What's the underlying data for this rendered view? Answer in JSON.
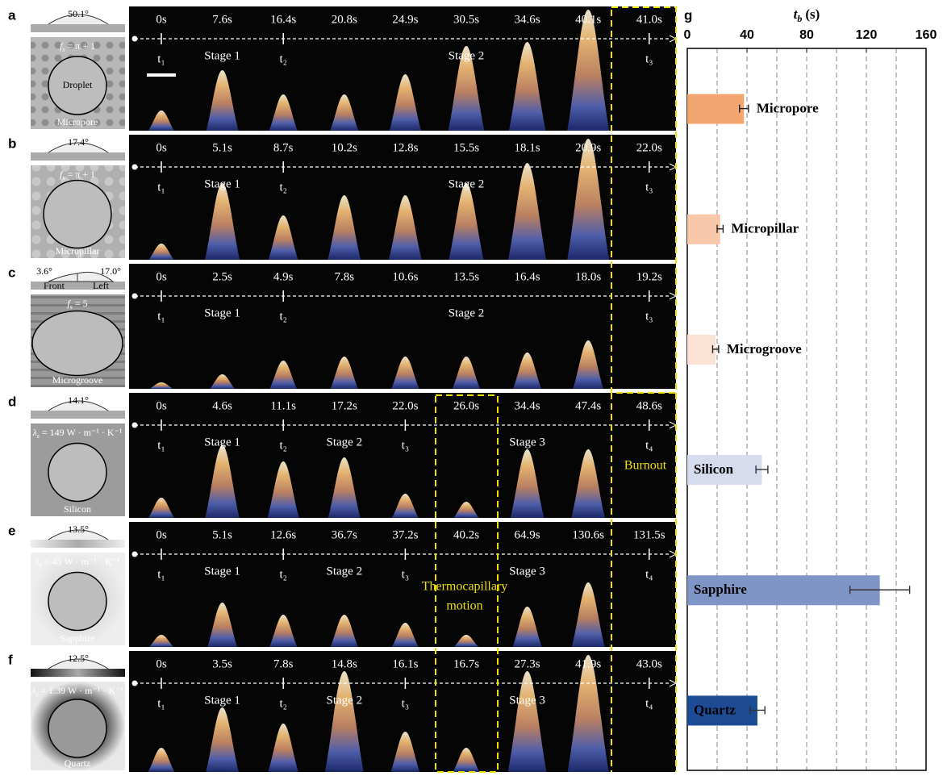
{
  "panels": [
    {
      "label": "a",
      "angles": [
        "50.1°"
      ],
      "formula": {
        "symbol": "f",
        "sub": "s",
        "rhs": "= π + 1"
      },
      "droplet": "Droplet",
      "sample": "Micropore",
      "times": [
        "0s",
        "7.6s",
        "16.4s",
        "20.8s",
        "24.9s",
        "30.5s",
        "34.6s",
        "40.1s",
        "41.0s"
      ],
      "marks": [
        "t₁",
        "Stage 1",
        "t₂",
        null,
        null,
        "Stage 2",
        null,
        null,
        "t₃"
      ]
    },
    {
      "label": "b",
      "angles": [
        "17.4°"
      ],
      "formula": {
        "symbol": "f",
        "sub": "s",
        "rhs": "= π + 1"
      },
      "sample": "Micropillar",
      "times": [
        "0s",
        "5.1s",
        "8.7s",
        "10.2s",
        "12.8s",
        "15.5s",
        "18.1s",
        "20.9s",
        "22.0s"
      ],
      "marks": [
        "t₁",
        "Stage 1",
        "t₂",
        null,
        null,
        "Stage 2",
        null,
        null,
        "t₃"
      ]
    },
    {
      "label": "c",
      "angles": [
        "3.6°",
        "17.0°"
      ],
      "views": [
        "Front",
        "Left"
      ],
      "formula": {
        "symbol": "f",
        "sub": "s",
        "rhs": "= 5"
      },
      "sample": "Microgroove",
      "times": [
        "0s",
        "2.5s",
        "4.9s",
        "7.8s",
        "10.6s",
        "13.5s",
        "16.4s",
        "18.0s",
        "19.2s"
      ],
      "marks": [
        "t₁",
        "Stage 1",
        "t₂",
        null,
        null,
        "Stage 2",
        null,
        null,
        "t₃"
      ]
    },
    {
      "label": "d",
      "angles": [
        "14.1°"
      ],
      "formula": {
        "symbol": "λ",
        "sub": "s",
        "rhs": "= 149 W · m⁻¹ · K⁻¹"
      },
      "sample": "Silicon",
      "times": [
        "0s",
        "4.6s",
        "11.1s",
        "17.2s",
        "22.0s",
        "26.0s",
        "34.4s",
        "47.4s",
        "48.6s"
      ],
      "marks": [
        "t₁",
        "Stage 1",
        "t₂",
        "Stage 2",
        "t₃",
        null,
        "Stage 3",
        null,
        "t₄"
      ]
    },
    {
      "label": "e",
      "angles": [
        "13.5°"
      ],
      "formula": {
        "symbol": "λ",
        "sub": "s",
        "rhs": "= 45 W · m⁻¹ · K⁻¹"
      },
      "sample": "Sapphire",
      "times": [
        "0s",
        "5.1s",
        "12.6s",
        "36.7s",
        "37.2s",
        "40.2s",
        "64.9s",
        "130.6s",
        "131.5s"
      ],
      "marks": [
        "t₁",
        "Stage 1",
        "t₂",
        "Stage 2",
        "t₃",
        null,
        "Stage 3",
        null,
        "t₄"
      ]
    },
    {
      "label": "f",
      "angles": [
        "12.5°"
      ],
      "formula": {
        "symbol": "λ",
        "sub": "s",
        "rhs": "= 1.39 W · m⁻¹ · K⁻¹"
      },
      "sample": "Quartz",
      "times": [
        "0s",
        "3.5s",
        "7.8s",
        "14.8s",
        "16.1s",
        "16.7s",
        "27.3s",
        "41.9s",
        "43.0s"
      ],
      "marks": [
        "t₁",
        "Stage 1",
        "t₂",
        "Stage 2",
        "t₃",
        null,
        "Stage 3",
        null,
        "t₄"
      ]
    }
  ],
  "annotations": {
    "burnout": "Burnout",
    "thermocapillary": [
      "Thermocapillary",
      "motion"
    ]
  },
  "chart_data": {
    "type": "bar",
    "orientation": "horizontal",
    "label": "g",
    "xlabel": {
      "symbol": "t",
      "sub": "b",
      "unit": "(s)"
    },
    "categories": [
      "Micropore",
      "Micropillar",
      "Microgroove",
      "Silicon",
      "Sapphire",
      "Quartz"
    ],
    "values": [
      38,
      22,
      19,
      50,
      129,
      47
    ],
    "errors": [
      3,
      2,
      2,
      4,
      20,
      5
    ],
    "colors": [
      "#f4a670",
      "#f9c8aa",
      "#fbe2d5",
      "#d6dced",
      "#7f95c6",
      "#1d4c95"
    ],
    "xlim": [
      0,
      160
    ],
    "xticks": [
      0,
      40,
      80,
      120,
      160
    ],
    "grid": [
      20,
      40,
      60,
      80,
      100,
      120,
      140
    ]
  }
}
